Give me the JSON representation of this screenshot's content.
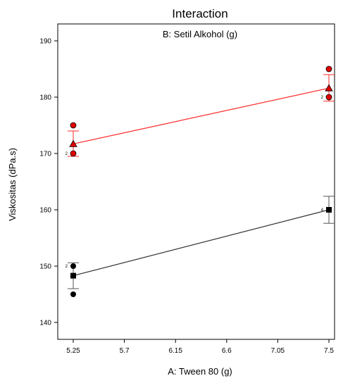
{
  "chart_data": {
    "type": "line",
    "title": "Interaction",
    "subtitle": "B: Setil Alkohol (g)",
    "xlabel": "A: Tween 80 (g)",
    "ylabel": "Viskositas (dPa.s)",
    "xlim": [
      5.25,
      7.5
    ],
    "ylim": [
      137,
      193
    ],
    "xticks": [
      "5.25",
      "5.7",
      "6.15",
      "6.6",
      "7.05",
      "7.5"
    ],
    "yticks": [
      "140",
      "150",
      "160",
      "170",
      "180",
      "190"
    ],
    "grid": false,
    "colors": {
      "high": "#ff2a2a",
      "low": "#333333",
      "high_point": "#e00000",
      "low_point": "#000000",
      "error_bar_low": "#555555"
    },
    "series": [
      {
        "key": "high",
        "x": [
          5.25,
          7.5
        ],
        "fit": [
          171.7,
          181.6
        ],
        "ci_upper": [
          174.0,
          184.0
        ],
        "ci_lower": [
          169.5,
          179.3
        ],
        "marker": "triangle",
        "observed": [
          {
            "x": 5.25,
            "y": 175,
            "count": ""
          },
          {
            "x": 5.25,
            "y": 170,
            "count": "2"
          },
          {
            "x": 7.5,
            "y": 185,
            "count": ""
          },
          {
            "x": 7.5,
            "y": 180,
            "count": "2"
          }
        ]
      },
      {
        "key": "low",
        "x": [
          5.25,
          7.5
        ],
        "fit": [
          148.3,
          160.0
        ],
        "ci_upper": [
          150.6,
          162.4
        ],
        "ci_lower": [
          146.0,
          157.6
        ],
        "marker": "square",
        "observed": [
          {
            "x": 5.25,
            "y": 150,
            "count": "2"
          },
          {
            "x": 5.25,
            "y": 145,
            "count": ""
          },
          {
            "x": 7.5,
            "y": 160,
            "count": "4"
          }
        ]
      }
    ]
  }
}
